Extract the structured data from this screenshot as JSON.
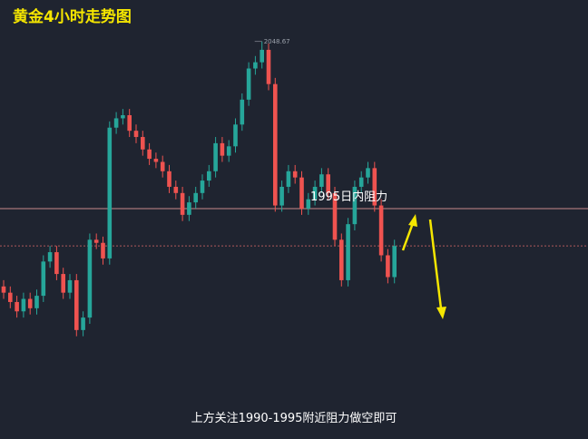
{
  "chart_data": {
    "type": "candlestick",
    "title": "黄金4小时走势图",
    "subtitle": "上方关注1990-1995附近阻力做空即可",
    "ylim": [
      1921,
      2062
    ],
    "up_color": "#26a69a",
    "down_color": "#ef5350",
    "annotation": {
      "text": "1995日内阻力",
      "value": 1995
    },
    "open": [
      1970,
      1968,
      1965,
      1962,
      1966,
      1963,
      1967,
      1978,
      1981,
      1974,
      1968,
      1972,
      1956,
      1960,
      1985,
      1984,
      1979,
      2021,
      2024,
      2025,
      2020,
      2018,
      2014,
      2011,
      2010,
      2007,
      2002,
      2000,
      1993,
      1997,
      2000,
      2004,
      2007,
      2016,
      2012,
      2015,
      2022,
      2030,
      2040,
      2042,
      2046,
      2035,
      1996,
      2002,
      2007,
      2005,
      1995,
      1998,
      2002,
      2006,
      2000,
      1985,
      1972,
      1990,
      2002,
      2005,
      2008,
      1996,
      1980,
      1973
    ],
    "high": [
      1972,
      1970,
      1967,
      1968,
      1968,
      1969,
      1980,
      1983,
      1983,
      1976,
      1974,
      1974,
      1962,
      1987,
      1987,
      1986,
      2023,
      2026,
      2027,
      2027,
      2022,
      2020,
      2016,
      2013,
      2012,
      2009,
      2004,
      2002,
      1999,
      2002,
      2006,
      2009,
      2018,
      2018,
      2017,
      2024,
      2032,
      2042,
      2044,
      2048.67,
      2048,
      2037,
      2004,
      2009,
      2009,
      2007,
      2000,
      2004,
      2008,
      2008,
      2002,
      1987,
      1992,
      2004,
      2007,
      2010,
      2010,
      1998,
      1982,
      1985
    ],
    "low": [
      1966,
      1963,
      1960,
      1960,
      1961,
      1961,
      1965,
      1976,
      1972,
      1966,
      1966,
      1954,
      1954,
      1958,
      1982,
      1977,
      1977,
      2019,
      2022,
      2018,
      2016,
      2012,
      2009,
      2008,
      2005,
      2000,
      1998,
      1991,
      1991,
      1995,
      1998,
      2002,
      2005,
      2010,
      2010,
      2013,
      2020,
      2028,
      2038,
      2040,
      2033,
      1994,
      1994,
      2000,
      2003,
      1993,
      1993,
      1996,
      2000,
      1998,
      1983,
      1970,
      1970,
      1988,
      2000,
      2003,
      1994,
      1978,
      1971,
      1971
    ],
    "close": [
      1968,
      1965,
      1962,
      1966,
      1963,
      1967,
      1978,
      1981,
      1974,
      1968,
      1972,
      1956,
      1960,
      1985,
      1984,
      1979,
      2021,
      2024,
      2025,
      2020,
      2018,
      2014,
      2011,
      2010,
      2007,
      2002,
      2000,
      1993,
      1997,
      2000,
      2004,
      2007,
      2016,
      2012,
      2015,
      2022,
      2030,
      2040,
      2042,
      2046,
      2035,
      1996,
      2002,
      2007,
      2005,
      1995,
      1998,
      2002,
      2006,
      2000,
      1985,
      1972,
      1990,
      2002,
      2005,
      2008,
      1996,
      1980,
      1973,
      1983
    ]
  }
}
